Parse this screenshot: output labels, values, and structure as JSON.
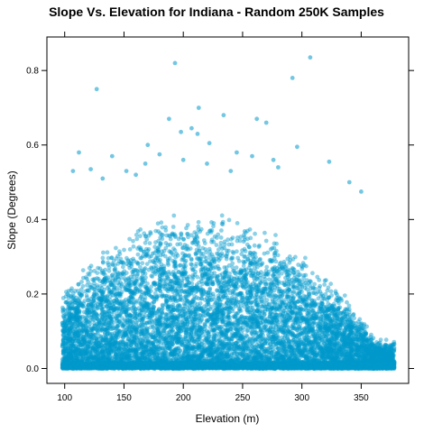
{
  "colors": {
    "point": "#0099cc"
  },
  "chart_data": {
    "type": "scatter",
    "title": "Slope Vs. Elevation for Indiana - Random 250K Samples",
    "xlabel": "Elevation (m)",
    "ylabel": "Slope (Degrees)",
    "xlim": [
      85,
      390
    ],
    "ylim": [
      -0.04,
      0.89
    ],
    "xticks": [
      100,
      150,
      200,
      250,
      300,
      350
    ],
    "yticks": [
      0.0,
      0.2,
      0.4,
      0.6,
      0.8
    ],
    "ytick_labels": [
      "0.0",
      "0.2",
      "0.4",
      "0.6",
      "0.8"
    ],
    "grid": false,
    "legend": "none",
    "sample_count": 250000,
    "series": [
      {
        "points_note": "outlier points visible above the dense cloud",
        "x": [
          193,
          307,
          127,
          292,
          213,
          234,
          188,
          262,
          270,
          207,
          198,
          212,
          170,
          222,
          296,
          276,
          323,
          140,
          112,
          107,
          122,
          350,
          180,
          168,
          152,
          160,
          245,
          132,
          340,
          200,
          220,
          240,
          258,
          280
        ],
        "y": [
          0.82,
          0.835,
          0.75,
          0.78,
          0.7,
          0.68,
          0.67,
          0.67,
          0.66,
          0.645,
          0.635,
          0.63,
          0.6,
          0.605,
          0.595,
          0.56,
          0.555,
          0.57,
          0.58,
          0.53,
          0.535,
          0.475,
          0.575,
          0.55,
          0.53,
          0.52,
          0.58,
          0.51,
          0.5,
          0.56,
          0.55,
          0.53,
          0.57,
          0.54
        ]
      }
    ]
  }
}
